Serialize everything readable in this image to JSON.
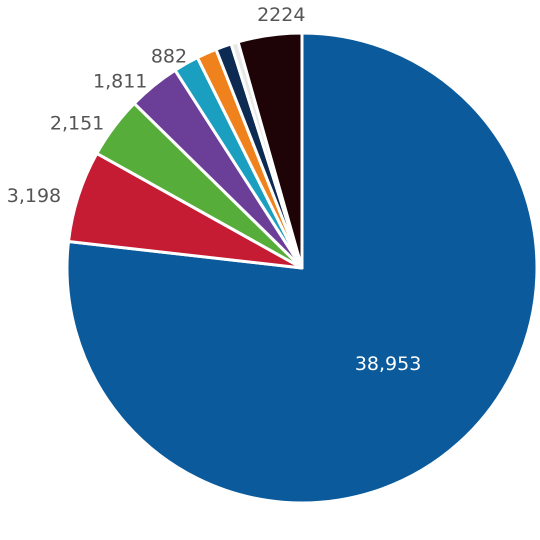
{
  "chart_data": {
    "type": "pie",
    "title": "",
    "slices": [
      {
        "value": 38953,
        "label": "38,953",
        "color": "#0a5a9c"
      },
      {
        "value": 3198,
        "label": "3,198",
        "color": "#c51b33"
      },
      {
        "value": 2151,
        "label": "2,151",
        "color": "#57ad3a"
      },
      {
        "value": 1811,
        "label": "1,811",
        "color": "#6b3f98"
      },
      {
        "value": 882,
        "label": "882",
        "color": "#1a9fc0"
      },
      {
        "value": 700,
        "label": "",
        "color": "#f0821e"
      },
      {
        "value": 550,
        "label": "",
        "color": "#0d2a52"
      },
      {
        "value": 250,
        "label": "",
        "color": "#e8e8e8"
      },
      {
        "value": 2224,
        "label": "2224",
        "color": "#1e0406"
      }
    ]
  }
}
